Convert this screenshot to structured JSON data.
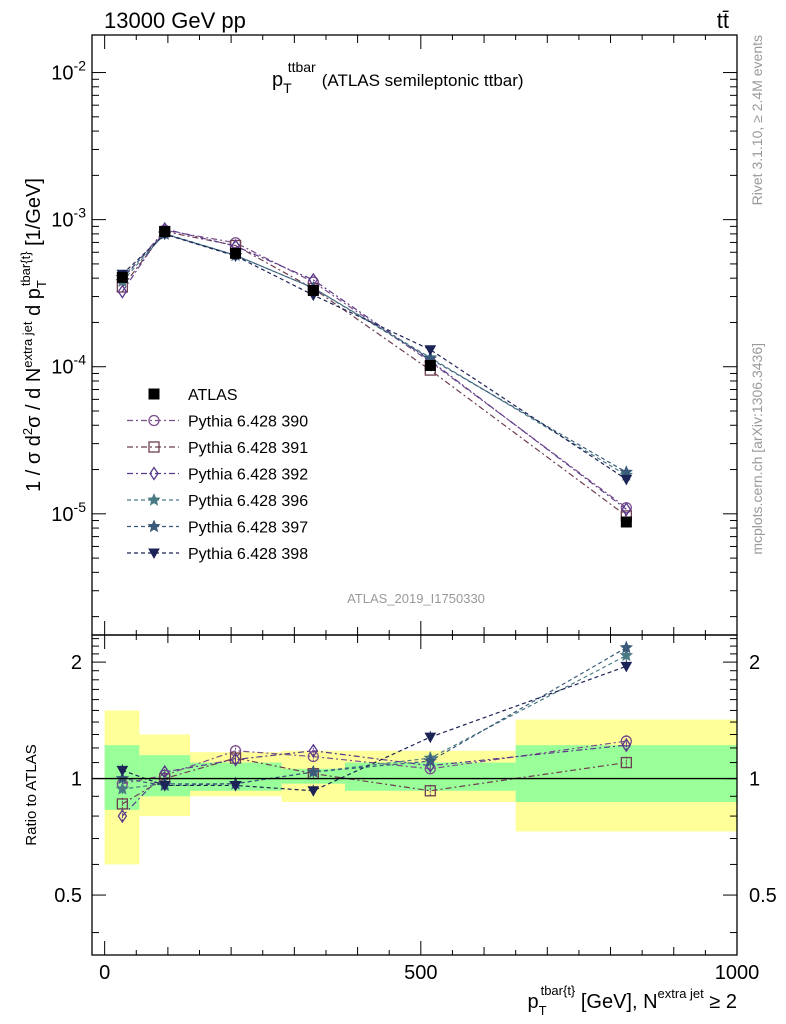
{
  "header": {
    "left": "13000 GeV pp",
    "right": "tt̄"
  },
  "plot_title": {
    "main": "p",
    "sub": "T",
    "sup": "ttbar",
    "rest": "(ATLAS semileptonic ttbar)"
  },
  "y_label_main": "1 / σ d²σ / d N^{extra jet} d p_T^{tbar{t}} [1/GeV]",
  "y_label_ratio": "Ratio to ATLAS",
  "x_label": "p_T^{tbar{t}} [GeV], N^{extra jet} ≥ 2",
  "right_side_texts": {
    "rivet": "Rivet 3.1.10, ≥ 2.4M events",
    "mcplots": "mcplots.cern.ch [arXiv:1306.3436]"
  },
  "analysis_id": "ATLAS_2019_I1750330",
  "colors": {
    "data": "#000000",
    "p390": "#7b4f8a",
    "p391": "#6e3e52",
    "p392": "#5a3a8c",
    "p396": "#4a7a84",
    "p397": "#3a5a7a",
    "p398": "#1c2356",
    "band_inner": "#99ff99",
    "band_outer": "#ffff99"
  },
  "chart_data": {
    "type": "line",
    "x_range": [
      -20,
      1000
    ],
    "y_scale": "log",
    "ylim_main": [
      1.5e-06,
      0.018
    ],
    "ylim_ratio": [
      0.35,
      2.35
    ],
    "x_ticks_labels": [
      "0",
      "500",
      "1000"
    ],
    "y_ticks_main": [
      {
        "value": 1e-05,
        "label": "10",
        "exp": "-5"
      },
      {
        "value": 0.0001,
        "label": "10",
        "exp": "-4"
      },
      {
        "value": 0.001,
        "label": "10",
        "exp": "-3"
      },
      {
        "value": 0.01,
        "label": "10",
        "exp": "-2"
      }
    ],
    "y_ticks_ratio": [
      {
        "value": 0.5,
        "label": "0.5"
      },
      {
        "value": 1,
        "label": "1"
      },
      {
        "value": 2,
        "label": "2"
      }
    ],
    "bins": [
      {
        "lo": 0,
        "hi": 55,
        "x": 28
      },
      {
        "lo": 55,
        "hi": 135,
        "x": 95
      },
      {
        "lo": 135,
        "hi": 280,
        "x": 207
      },
      {
        "lo": 280,
        "hi": 380,
        "x": 330
      },
      {
        "lo": 380,
        "hi": 650,
        "x": 515
      },
      {
        "lo": 650,
        "hi": 1000,
        "x": 825
      }
    ],
    "data": {
      "name": "ATLAS",
      "values": [
        0.000405,
        0.00083,
        0.00059,
        0.00033,
        0.000102,
        8.8e-06
      ],
      "band_inner": [
        [
          0.83,
          1.22
        ],
        [
          0.9,
          1.15
        ],
        [
          0.93,
          1.1
        ],
        [
          0.97,
          1.06
        ],
        [
          0.93,
          1.1
        ],
        [
          0.87,
          1.22
        ]
      ],
      "band_outer": [
        [
          0.6,
          1.5
        ],
        [
          0.8,
          1.3
        ],
        [
          0.9,
          1.17
        ],
        [
          0.87,
          1.18
        ],
        [
          0.87,
          1.18
        ],
        [
          0.73,
          1.42
        ]
      ]
    },
    "series": [
      {
        "name": "Pythia 6.428 390",
        "key": "p390",
        "marker": "circle",
        "dash": "6,3,2,3",
        "ratio": [
          0.97,
          1.02,
          1.18,
          1.14,
          1.06,
          1.25
        ]
      },
      {
        "name": "Pythia 6.428 391",
        "key": "p391",
        "marker": "square",
        "dash": "6,3,2,3",
        "ratio": [
          0.86,
          1.0,
          1.13,
          1.03,
          0.93,
          1.1
        ]
      },
      {
        "name": "Pythia 6.428 392",
        "key": "p392",
        "marker": "diamond",
        "dash": "6,3,2,3",
        "ratio": [
          0.8,
          1.04,
          1.12,
          1.18,
          1.08,
          1.22
        ]
      },
      {
        "name": "Pythia 6.428 396",
        "key": "p396",
        "marker": "star",
        "dash": "4,3",
        "ratio": [
          0.94,
          0.97,
          0.97,
          1.04,
          1.13,
          2.08
        ]
      },
      {
        "name": "Pythia 6.428 397",
        "key": "p397",
        "marker": "star",
        "dash": "4,3",
        "ratio": [
          1.0,
          0.96,
          0.97,
          1.04,
          1.11,
          2.18
        ]
      },
      {
        "name": "Pythia 6.428 398",
        "key": "p398",
        "marker": "triangle-down",
        "dash": "4,3",
        "ratio": [
          1.05,
          0.96,
          0.96,
          0.93,
          1.28,
          1.95
        ]
      }
    ],
    "legend_placement": "middle-left"
  }
}
